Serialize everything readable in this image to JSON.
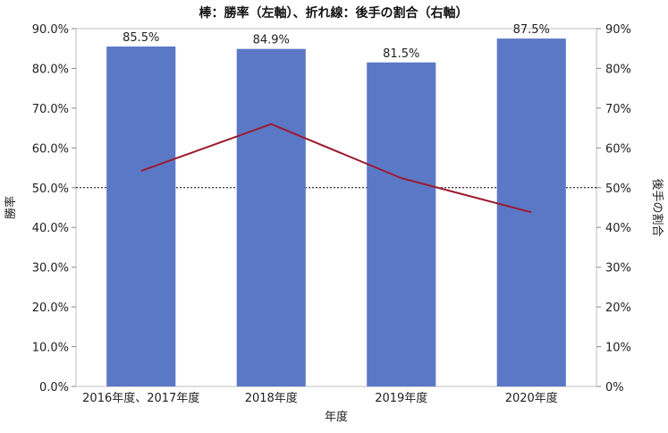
{
  "chart_data": {
    "type": "bar",
    "title": "棒：勝率（左軸）、折れ線：後手の割合（右軸）",
    "xlabel": "年度",
    "ylabel": "勝率",
    "y2label": "後手の割合",
    "categories": [
      "2016年度、2017年度",
      "2018年度",
      "2019年度",
      "2020年度"
    ],
    "ylim": [
      0,
      90
    ],
    "y2lim": [
      0,
      90
    ],
    "y_ticks": [
      "0.0%",
      "10.0%",
      "20.0%",
      "30.0%",
      "40.0%",
      "50.0%",
      "60.0%",
      "70.0%",
      "80.0%",
      "90.0%"
    ],
    "y2_ticks": [
      "0%",
      "10%",
      "20%",
      "30%",
      "40%",
      "50%",
      "60%",
      "70%",
      "80%",
      "90%"
    ],
    "reference_line": 50,
    "series": [
      {
        "type": "bar",
        "axis": "left",
        "values": [
          85.5,
          84.9,
          81.5,
          87.5
        ],
        "labels": [
          "85.5%",
          "84.9%",
          "81.5%",
          "87.5%"
        ],
        "color": "#5B78C6"
      },
      {
        "type": "line",
        "axis": "right",
        "values": [
          54.2,
          66.0,
          52.4,
          43.8
        ],
        "color": "#9B1A2E"
      }
    ],
    "grid": false,
    "legend": "none"
  }
}
